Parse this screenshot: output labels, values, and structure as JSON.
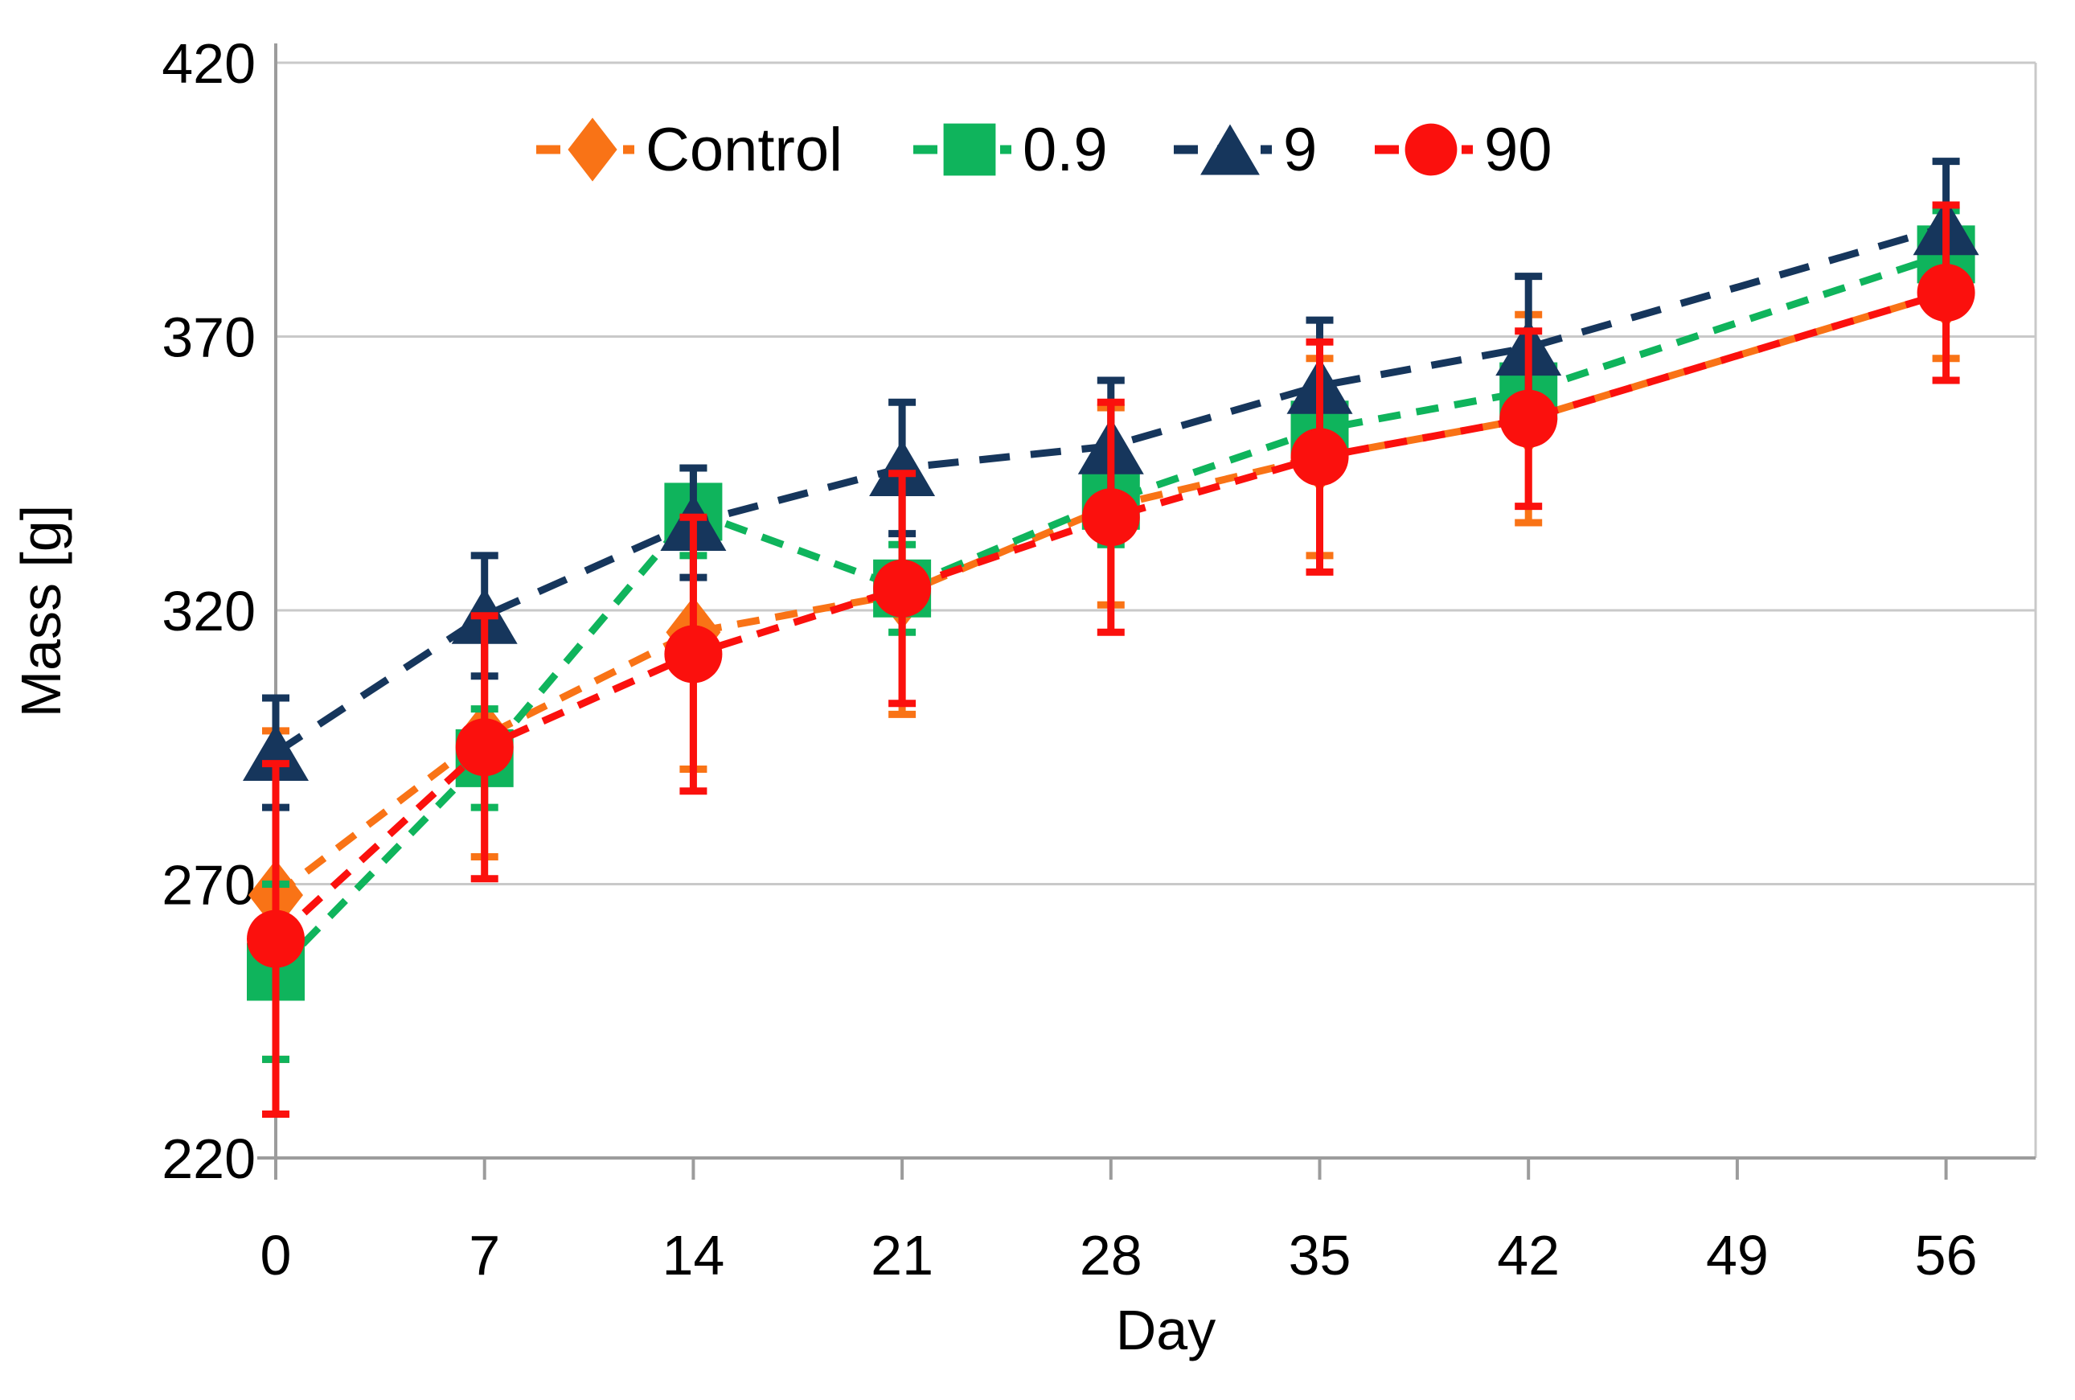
{
  "chart_data": {
    "type": "line",
    "title": "",
    "xlabel": "Day",
    "ylabel": "Mass [g]",
    "x": [
      0,
      7,
      14,
      21,
      28,
      35,
      42,
      56
    ],
    "x_ticks": [
      "0",
      "7",
      "14",
      "21",
      "28",
      "35",
      "42",
      "49",
      "56"
    ],
    "x_tick_values": [
      0,
      7,
      14,
      21,
      28,
      35,
      42,
      49,
      56
    ],
    "y_ticks": [
      "220",
      "270",
      "320",
      "370",
      "420"
    ],
    "y_tick_values": [
      220,
      270,
      320,
      370,
      420
    ],
    "xlim": [
      0,
      59
    ],
    "ylim": [
      220,
      420
    ],
    "grid": "horizontal",
    "legend_position": "top-inside",
    "line_style": "dashed",
    "series": [
      {
        "name": "Control",
        "marker": "diamond",
        "color": "#F97316",
        "values": [
          268,
          297,
          316,
          323,
          339,
          348,
          355,
          378
        ],
        "error": [
          30,
          22,
          25,
          22,
          18,
          18,
          19,
          12
        ]
      },
      {
        "name": "0.9",
        "marker": "square",
        "color": "#0FB45C",
        "values": [
          254,
          293,
          338,
          324,
          340,
          353,
          360,
          385
        ],
        "error": [
          16,
          9,
          8,
          8,
          8,
          8,
          8,
          8
        ]
      },
      {
        "name": "9",
        "marker": "triangle",
        "color": "#16365C",
        "values": [
          294,
          319,
          336,
          346,
          350,
          361,
          368,
          390
        ],
        "error": [
          10,
          11,
          10,
          12,
          12,
          12,
          13,
          12
        ]
      },
      {
        "name": "90",
        "marker": "circle",
        "color": "#FB100D",
        "values": [
          260,
          295,
          312,
          324,
          337,
          348,
          355,
          378
        ],
        "error": [
          32,
          24,
          25,
          21,
          21,
          21,
          16,
          16
        ]
      }
    ],
    "colors": {
      "grid": "#C9C9C9",
      "axis": "#9C9C9C",
      "text": "#000000",
      "background": "#FFFFFF"
    }
  }
}
